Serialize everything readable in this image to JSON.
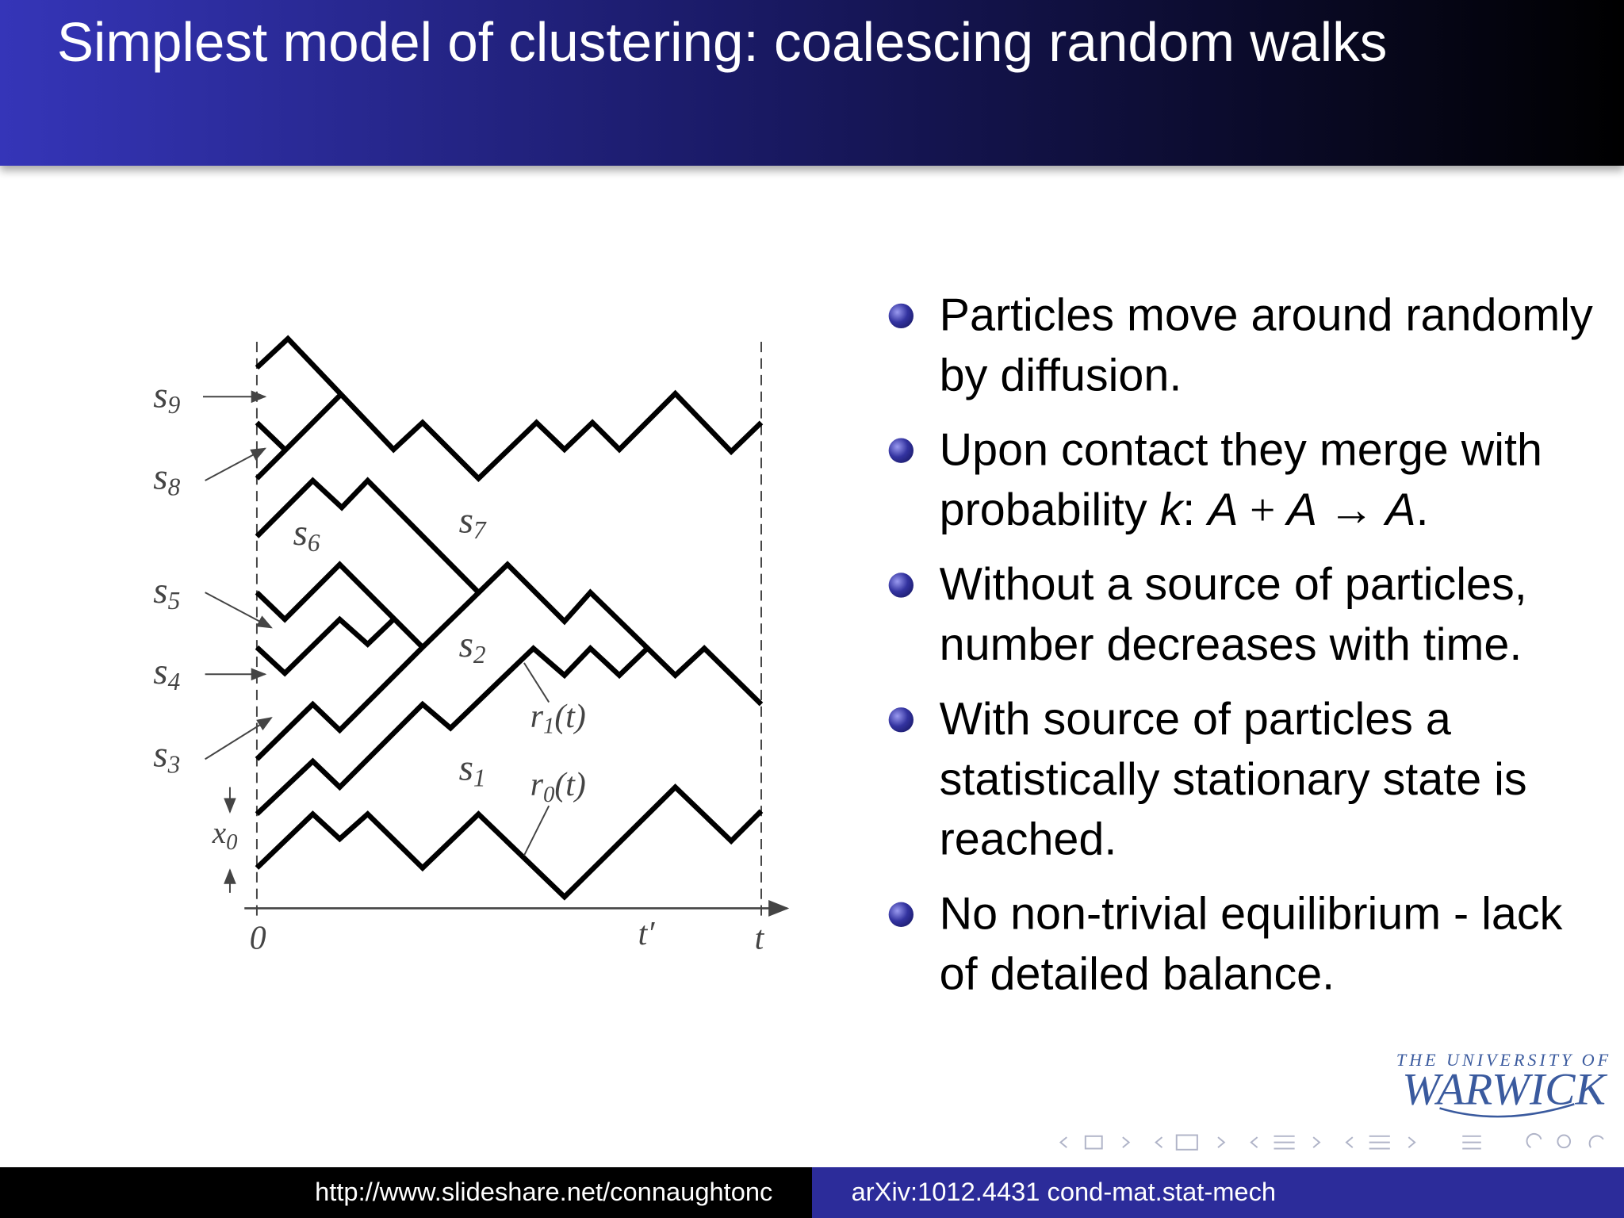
{
  "header": {
    "title": "Simplest model of clustering: coalescing random walks"
  },
  "figure": {
    "labels": [
      {
        "symbol": "s",
        "subscript": "9"
      },
      {
        "symbol": "s",
        "subscript": "8"
      },
      {
        "symbol": "s",
        "subscript": "6"
      },
      {
        "symbol": "s",
        "subscript": "7"
      },
      {
        "symbol": "s",
        "subscript": "5"
      },
      {
        "symbol": "s",
        "subscript": "4"
      },
      {
        "symbol": "s",
        "subscript": "2"
      },
      {
        "symbol": "s",
        "subscript": "3"
      },
      {
        "symbol": "s",
        "subscript": "1"
      },
      {
        "symbol": "x",
        "subscript": "0"
      }
    ],
    "curves": [
      {
        "symbol": "r",
        "subscript": "1",
        "argument": "(t)"
      },
      {
        "symbol": "r",
        "subscript": "0",
        "argument": "(t)"
      }
    ],
    "axis": {
      "origin": "0",
      "t_prime": "t′",
      "t": "t"
    }
  },
  "bullets": [
    [
      "Particles move around randomly by diffusion."
    ],
    [
      "Upon contact they merge with probability ",
      "k",
      ": ",
      "A",
      " + ",
      "A",
      " → ",
      "A",
      "."
    ],
    [
      "Without a source of particles, number decreases with time."
    ],
    [
      "With source of particles a statistically stationary state is reached."
    ],
    [
      "No non-trivial equilibrium - lack of detailed balance."
    ]
  ],
  "logo": {
    "line1": "THE UNIVERSITY OF",
    "line2": "WARWICK"
  },
  "footer": {
    "left": "http://www.slideshare.net/connaughtonc",
    "right": "arXiv:1012.4431 cond-mat.stat-mech"
  }
}
